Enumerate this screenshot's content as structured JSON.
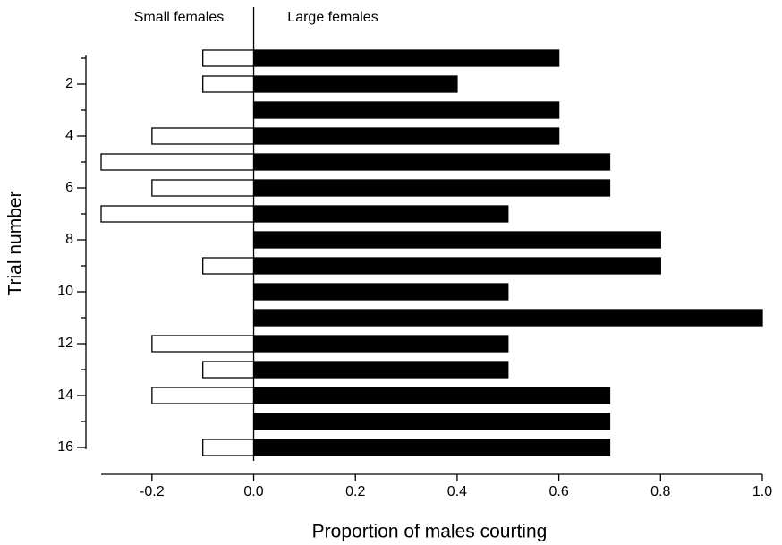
{
  "chart_data": {
    "type": "diverging-bar",
    "xlabel": "Proportion of males courting",
    "ylabel": "Trial number",
    "categories": [
      null,
      "2",
      null,
      "4",
      null,
      "6",
      null,
      "8",
      null,
      "10",
      null,
      "12",
      null,
      "14",
      null,
      "16"
    ],
    "series": [
      {
        "name": "Small females",
        "color": "#ffffff",
        "values": [
          -0.1,
          -0.1,
          null,
          -0.2,
          -0.3,
          -0.2,
          -0.3,
          null,
          -0.1,
          null,
          null,
          -0.2,
          -0.1,
          -0.2,
          null,
          -0.1
        ]
      },
      {
        "name": "Large females",
        "color": "#000000",
        "values": [
          0.6,
          0.4,
          0.6,
          0.6,
          0.7,
          0.7,
          0.5,
          0.8,
          0.8,
          0.5,
          1.0,
          0.5,
          0.5,
          0.7,
          0.7,
          0.7
        ]
      }
    ],
    "xlim": [
      -0.3,
      1.0
    ],
    "xticks": [
      -0.2,
      {
        "value": 0,
        "label": "0.0"
      },
      0.2,
      0.4,
      0.6,
      0.8,
      {
        "value": 1,
        "label": "1.0"
      }
    ]
  }
}
